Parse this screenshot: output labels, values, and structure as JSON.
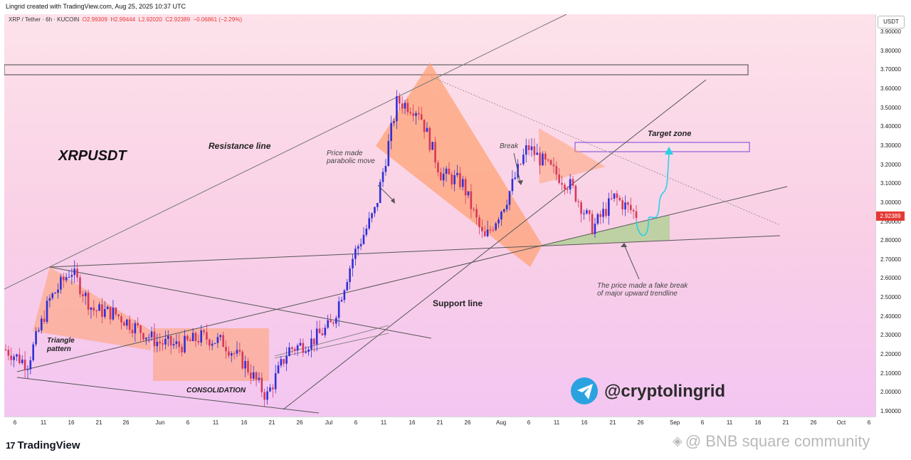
{
  "header": {
    "created_line": "Lingrid created with TradingView.com, Aug 25, 2025 10:37 UTC",
    "symbol": "XRP / Tether · 6h · KUCOIN",
    "open": "O2.99309",
    "high": "H2.99444",
    "low": "L2.92020",
    "close": "C2.92389",
    "change": "−0.06861 (−2.29%)"
  },
  "price_scale": {
    "currency": "USDT",
    "current_price": "2.92389",
    "ticks": [
      "3.90000",
      "3.80000",
      "3.70000",
      "3.60000",
      "3.50000",
      "3.40000",
      "3.30000",
      "3.20000",
      "3.10000",
      "3.00000",
      "2.90000",
      "2.80000",
      "2.70000",
      "2.60000",
      "2.50000",
      "2.40000",
      "2.30000",
      "2.20000",
      "2.10000",
      "2.00000",
      "1.90000"
    ]
  },
  "time_scale": {
    "ticks": [
      "6",
      "11",
      "16",
      "21",
      "26",
      "Jun",
      "6",
      "11",
      "16",
      "21",
      "26",
      "Jul",
      "6",
      "11",
      "16",
      "21",
      "26",
      "Aug",
      "6",
      "11",
      "16",
      "21",
      "26",
      "Sep",
      "6",
      "11",
      "16",
      "21",
      "26",
      "Oct",
      "6"
    ]
  },
  "annotations": {
    "title": "XRPUSDT",
    "resistance": "Resistance line",
    "support": "Support line",
    "parabolic_1": "Price made",
    "parabolic_2": "parabolic move",
    "break": "Break",
    "target": "Target zone",
    "triangle_1": "Triangle",
    "triangle_2": "pattern",
    "consolidation": "CONSOLIDATION",
    "fake_1": "The price made a fake break",
    "fake_2": "of major upward trendline",
    "handle": "@cryptolingrid"
  },
  "footer": {
    "brand": "TradingView",
    "watermark": "@ BNB square community"
  },
  "colors": {
    "up": "#2f2fd6",
    "down": "#d6385a",
    "projection": "#2ad0e8",
    "price_tag": "#e53935"
  },
  "chart_data": {
    "type": "candlestick",
    "title": "XRPUSDT",
    "ylabel": "USDT",
    "ylim": [
      1.85,
      3.95
    ],
    "close_series_approx": [
      {
        "x": "May 6",
        "y": 2.18
      },
      {
        "x": "May 9",
        "y": 2.1
      },
      {
        "x": "May 12",
        "y": 2.45
      },
      {
        "x": "May 14",
        "y": 2.62
      },
      {
        "x": "May 18",
        "y": 2.4
      },
      {
        "x": "May 24",
        "y": 2.38
      },
      {
        "x": "May 30",
        "y": 2.3
      },
      {
        "x": "Jun 1",
        "y": 2.22
      },
      {
        "x": "Jun 6",
        "y": 2.2
      },
      {
        "x": "Jun 10",
        "y": 2.25
      },
      {
        "x": "Jun 16",
        "y": 2.22
      },
      {
        "x": "Jun 21",
        "y": 2.1
      },
      {
        "x": "Jun 23",
        "y": 1.92
      },
      {
        "x": "Jun 28",
        "y": 2.18
      },
      {
        "x": "Jul 3",
        "y": 2.22
      },
      {
        "x": "Jul 8",
        "y": 2.32
      },
      {
        "x": "Jul 11",
        "y": 2.7
      },
      {
        "x": "Jul 14",
        "y": 2.95
      },
      {
        "x": "Jul 18",
        "y": 3.55
      },
      {
        "x": "Jul 21",
        "y": 3.5
      },
      {
        "x": "Jul 25",
        "y": 3.15
      },
      {
        "x": "Jul 30",
        "y": 3.1
      },
      {
        "x": "Aug 3",
        "y": 2.78
      },
      {
        "x": "Aug 6",
        "y": 3.0
      },
      {
        "x": "Aug 8",
        "y": 3.3
      },
      {
        "x": "Aug 12",
        "y": 3.18
      },
      {
        "x": "Aug 15",
        "y": 3.08
      },
      {
        "x": "Aug 19",
        "y": 2.85
      },
      {
        "x": "Aug 22",
        "y": 3.02
      },
      {
        "x": "Aug 25",
        "y": 2.92389
      }
    ],
    "last": {
      "open": 2.99309,
      "high": 2.99444,
      "low": 2.9202,
      "close": 2.92389
    },
    "target_zone": [
      3.28,
      3.32
    ],
    "upper_zone": [
      3.67,
      3.7
    ]
  }
}
